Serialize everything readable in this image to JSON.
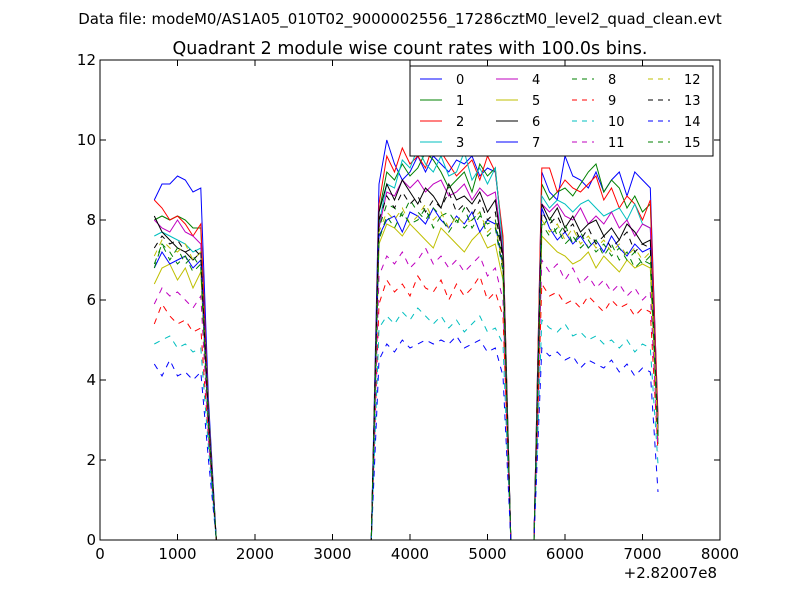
{
  "figure": {
    "suptitle": "Data file: modeM0/AS1A05_010T02_9000002556_17286cztM0_level2_quad_clean.evt"
  },
  "chart_data": {
    "type": "line",
    "title": "Quadrant 2 module wise count rates with 100.0s bins.",
    "xlabel": "",
    "ylabel": "",
    "x_offset_label": "+2.82007e8",
    "xlim": [
      0,
      8000
    ],
    "ylim": [
      0,
      12
    ],
    "xticks": [
      0,
      1000,
      2000,
      3000,
      4000,
      5000,
      6000,
      7000,
      8000
    ],
    "yticks": [
      0,
      2,
      4,
      6,
      8,
      10,
      12
    ],
    "legend_location": "upper-right",
    "legend_ncol": 4,
    "x": [
      700,
      800,
      900,
      1000,
      1100,
      1200,
      1300,
      1400,
      1500,
      1600,
      2000,
      2500,
      3000,
      3500,
      3600,
      3700,
      3800,
      3900,
      4000,
      4100,
      4200,
      4300,
      4400,
      4500,
      4600,
      4700,
      4800,
      4900,
      5000,
      5100,
      5200,
      5300,
      5400,
      5500,
      5600,
      5700,
      5800,
      5900,
      6000,
      6100,
      6200,
      6300,
      6400,
      6500,
      6600,
      6700,
      6800,
      6900,
      7000,
      7100,
      7200
    ],
    "series": [
      {
        "name": "0",
        "color": "#0000ff",
        "dash": "solid",
        "values": [
          8.5,
          8.9,
          8.9,
          9.1,
          9.0,
          8.7,
          8.8,
          3.5,
          0.0,
          0.0,
          0.0,
          0.0,
          0.0,
          0.0,
          8.9,
          10.0,
          9.4,
          9.0,
          9.2,
          9.6,
          9.2,
          9.6,
          9.4,
          9.2,
          9.5,
          9.4,
          9.6,
          9.1,
          9.3,
          9.2,
          7.5,
          0.0,
          0.0,
          0.0,
          0.0,
          9.2,
          8.7,
          8.5,
          9.6,
          9.1,
          9.0,
          8.8,
          9.2,
          8.7,
          9.0,
          9.2,
          8.6,
          9.2,
          9.0,
          8.8,
          3.0
        ]
      },
      {
        "name": "1",
        "color": "#008000",
        "dash": "solid",
        "values": [
          8.0,
          8.1,
          8.0,
          8.1,
          8.0,
          7.8,
          7.8,
          3.3,
          0.0,
          0.0,
          0.0,
          0.0,
          0.0,
          0.0,
          8.2,
          9.2,
          9.0,
          9.4,
          9.1,
          9.3,
          9.7,
          9.5,
          9.2,
          8.8,
          9.0,
          9.2,
          8.7,
          9.4,
          9.1,
          9.3,
          7.4,
          0.0,
          0.0,
          0.0,
          0.0,
          8.9,
          8.5,
          8.7,
          8.8,
          8.6,
          8.9,
          9.2,
          9.4,
          8.7,
          9.0,
          8.8,
          8.3,
          8.6,
          8.2,
          8.4,
          2.9
        ]
      },
      {
        "name": "2",
        "color": "#ff0000",
        "dash": "solid",
        "values": [
          8.5,
          8.3,
          8.0,
          8.1,
          7.9,
          7.6,
          7.9,
          3.2,
          0.0,
          0.0,
          0.0,
          0.0,
          0.0,
          0.0,
          8.4,
          9.6,
          9.2,
          9.8,
          9.4,
          9.6,
          9.3,
          9.9,
          9.7,
          9.4,
          9.1,
          9.3,
          9.5,
          9.0,
          9.6,
          9.2,
          7.6,
          0.0,
          0.0,
          0.0,
          0.0,
          9.3,
          9.3,
          8.7,
          9.0,
          8.8,
          8.7,
          8.9,
          9.1,
          8.5,
          8.8,
          8.3,
          8.6,
          8.4,
          8.0,
          8.5,
          3.1
        ]
      },
      {
        "name": "3",
        "color": "#00bfbf",
        "dash": "solid",
        "values": [
          7.6,
          7.7,
          7.6,
          7.5,
          7.4,
          7.2,
          7.3,
          3.1,
          0.0,
          0.0,
          0.0,
          0.0,
          0.0,
          0.0,
          7.9,
          8.9,
          8.8,
          9.5,
          9.3,
          9.8,
          9.4,
          9.2,
          9.6,
          9.1,
          9.2,
          9.7,
          9.0,
          9.3,
          8.9,
          9.3,
          7.3,
          0.0,
          0.0,
          0.0,
          0.0,
          8.6,
          8.3,
          8.5,
          8.4,
          8.2,
          8.4,
          8.5,
          8.3,
          8.1,
          8.2,
          8.3,
          8.0,
          8.4,
          7.9,
          7.8,
          2.8
        ]
      },
      {
        "name": "4",
        "color": "#bf00bf",
        "dash": "solid",
        "values": [
          8.0,
          7.8,
          7.7,
          8.0,
          7.7,
          7.6,
          7.4,
          3.1,
          0.0,
          0.0,
          0.0,
          0.0,
          0.0,
          0.0,
          7.8,
          8.7,
          8.6,
          9.0,
          8.8,
          9.0,
          8.7,
          8.9,
          9.0,
          8.6,
          8.7,
          8.9,
          8.5,
          8.8,
          8.6,
          8.7,
          7.2,
          0.0,
          0.0,
          0.0,
          0.0,
          8.4,
          8.2,
          8.4,
          8.1,
          8.0,
          8.3,
          7.9,
          8.1,
          7.9,
          8.2,
          7.8,
          8.0,
          7.6,
          7.9,
          7.8,
          2.8
        ]
      },
      {
        "name": "5",
        "color": "#bfbf00",
        "dash": "solid",
        "values": [
          6.4,
          6.8,
          6.9,
          6.5,
          6.8,
          6.3,
          6.7,
          2.8,
          0.0,
          0.0,
          0.0,
          0.0,
          0.0,
          0.0,
          7.4,
          7.9,
          7.8,
          7.6,
          7.9,
          7.7,
          7.5,
          7.3,
          7.8,
          7.6,
          7.4,
          7.2,
          7.5,
          7.7,
          7.3,
          7.4,
          6.5,
          0.0,
          0.0,
          0.0,
          0.0,
          7.6,
          7.4,
          7.2,
          7.1,
          6.9,
          7.0,
          7.2,
          6.8,
          7.1,
          6.9,
          6.7,
          7.0,
          6.8,
          6.9,
          6.8,
          2.5
        ]
      },
      {
        "name": "6",
        "color": "#000000",
        "dash": "solid",
        "values": [
          8.1,
          7.7,
          7.5,
          7.3,
          7.2,
          7.0,
          7.2,
          3.0,
          0.0,
          0.0,
          0.0,
          0.0,
          0.0,
          0.0,
          8.2,
          8.9,
          8.5,
          9.0,
          8.7,
          8.4,
          8.8,
          8.6,
          8.3,
          8.9,
          8.5,
          8.6,
          8.4,
          8.7,
          8.2,
          8.5,
          7.1,
          0.0,
          0.0,
          0.0,
          0.0,
          8.4,
          8.0,
          8.3,
          7.8,
          8.1,
          7.7,
          7.9,
          8.0,
          7.6,
          7.8,
          7.5,
          7.9,
          7.7,
          7.4,
          7.5,
          2.7
        ]
      },
      {
        "name": "7",
        "color": "#0000ff",
        "dash": "solid",
        "values": [
          6.8,
          7.2,
          6.9,
          7.0,
          7.1,
          6.8,
          7.0,
          2.9,
          0.0,
          0.0,
          0.0,
          0.0,
          0.0,
          0.0,
          7.6,
          8.0,
          8.1,
          7.7,
          8.2,
          8.1,
          7.9,
          8.3,
          8.0,
          7.8,
          8.1,
          7.9,
          8.2,
          7.7,
          8.0,
          7.9,
          6.8,
          0.0,
          0.0,
          0.0,
          0.0,
          8.3,
          7.8,
          7.5,
          7.7,
          7.4,
          7.6,
          7.3,
          7.5,
          7.2,
          7.6,
          7.3,
          7.1,
          7.4,
          7.2,
          7.3,
          2.6
        ]
      },
      {
        "name": "8",
        "color": "#008000",
        "dash": "dash",
        "values": [
          6.8,
          7.4,
          7.2,
          6.9,
          7.1,
          6.7,
          6.9,
          2.7,
          0.0,
          0.0,
          0.0,
          0.0,
          0.0,
          0.0,
          7.8,
          8.4,
          8.3,
          8.1,
          8.5,
          8.2,
          8.0,
          8.3,
          8.1,
          8.2,
          7.9,
          8.3,
          7.8,
          8.1,
          7.9,
          8.0,
          6.9,
          0.0,
          0.0,
          0.0,
          0.0,
          7.8,
          8.1,
          7.6,
          7.9,
          7.4,
          7.7,
          7.3,
          7.5,
          7.1,
          7.4,
          7.0,
          7.2,
          6.8,
          7.0,
          6.9,
          2.4
        ]
      },
      {
        "name": "9",
        "color": "#ff0000",
        "dash": "dash",
        "values": [
          5.4,
          5.9,
          5.6,
          5.4,
          5.5,
          5.2,
          5.3,
          2.5,
          0.0,
          0.0,
          0.0,
          0.0,
          0.0,
          0.0,
          5.9,
          6.5,
          6.2,
          6.4,
          6.1,
          6.6,
          6.3,
          6.2,
          6.5,
          6.0,
          6.4,
          6.1,
          6.3,
          6.6,
          6.0,
          6.2,
          5.6,
          0.0,
          0.0,
          0.0,
          0.0,
          6.4,
          6.1,
          6.2,
          5.9,
          6.0,
          5.8,
          6.1,
          5.9,
          5.7,
          6.0,
          5.8,
          5.9,
          5.6,
          5.8,
          5.7,
          2.2
        ]
      },
      {
        "name": "10",
        "color": "#00bfbf",
        "dash": "dash",
        "values": [
          4.9,
          5.0,
          5.1,
          4.8,
          4.9,
          4.7,
          4.8,
          2.3,
          0.0,
          0.0,
          0.0,
          0.0,
          0.0,
          0.0,
          5.3,
          5.6,
          5.4,
          5.7,
          5.5,
          5.8,
          5.6,
          5.4,
          5.6,
          5.3,
          5.5,
          5.2,
          5.4,
          5.6,
          5.2,
          5.3,
          4.9,
          0.0,
          0.0,
          0.0,
          0.0,
          5.5,
          5.3,
          5.2,
          5.4,
          5.1,
          5.2,
          5.0,
          5.1,
          4.9,
          5.0,
          4.8,
          5.0,
          4.7,
          4.9,
          4.8,
          1.9
        ]
      },
      {
        "name": "11",
        "color": "#bf00bf",
        "dash": "dash",
        "values": [
          5.9,
          6.3,
          6.1,
          6.2,
          6.0,
          5.8,
          6.1,
          2.6,
          0.0,
          0.0,
          0.0,
          0.0,
          0.0,
          0.0,
          6.6,
          7.1,
          6.9,
          7.2,
          6.8,
          7.0,
          7.3,
          6.9,
          7.1,
          6.8,
          7.0,
          6.7,
          6.9,
          7.1,
          6.6,
          6.8,
          6.0,
          0.0,
          0.0,
          0.0,
          0.0,
          7.0,
          6.7,
          6.9,
          6.5,
          6.8,
          6.4,
          6.6,
          6.3,
          6.5,
          6.2,
          6.4,
          6.1,
          6.3,
          6.0,
          6.2,
          2.3
        ]
      },
      {
        "name": "12",
        "color": "#bfbf00",
        "dash": "dash",
        "values": [
          7.1,
          7.5,
          7.3,
          7.2,
          7.4,
          7.0,
          7.2,
          2.9,
          0.0,
          0.0,
          0.0,
          0.0,
          0.0,
          0.0,
          7.7,
          8.2,
          8.0,
          8.3,
          7.9,
          8.1,
          8.4,
          8.0,
          8.2,
          7.8,
          8.1,
          7.9,
          8.0,
          8.2,
          7.7,
          7.9,
          6.8,
          0.0,
          0.0,
          0.0,
          0.0,
          8.0,
          7.7,
          7.9,
          7.5,
          7.8,
          7.4,
          7.6,
          7.3,
          7.5,
          7.2,
          7.4,
          7.1,
          7.3,
          7.0,
          7.2,
          2.6
        ]
      },
      {
        "name": "13",
        "color": "#000000",
        "dash": "dash",
        "values": [
          7.3,
          7.6,
          7.4,
          7.5,
          7.2,
          7.3,
          7.1,
          3.0,
          0.0,
          0.0,
          0.0,
          0.0,
          0.0,
          0.0,
          8.0,
          8.6,
          8.3,
          8.7,
          8.4,
          8.6,
          8.2,
          8.5,
          8.3,
          8.7,
          8.2,
          8.4,
          8.1,
          8.5,
          8.0,
          8.2,
          7.0,
          0.0,
          0.0,
          0.0,
          0.0,
          8.2,
          7.9,
          8.1,
          7.7,
          7.9,
          7.5,
          7.8,
          7.4,
          7.6,
          7.3,
          7.5,
          7.7,
          7.2,
          7.4,
          7.3,
          2.6
        ]
      },
      {
        "name": "14",
        "color": "#0000ff",
        "dash": "dash",
        "values": [
          4.4,
          4.1,
          4.5,
          4.1,
          4.2,
          4.0,
          4.2,
          2.0,
          0.0,
          0.0,
          0.0,
          0.0,
          0.0,
          0.0,
          4.5,
          4.9,
          4.7,
          5.0,
          4.8,
          4.9,
          5.0,
          4.9,
          5.0,
          4.9,
          5.1,
          4.8,
          4.9,
          5.0,
          4.7,
          4.8,
          4.1,
          0.0,
          0.0,
          0.0,
          0.0,
          4.8,
          4.6,
          4.7,
          4.5,
          4.6,
          4.3,
          4.5,
          4.4,
          4.3,
          4.5,
          4.2,
          4.4,
          4.1,
          4.3,
          4.2,
          1.2
        ]
      },
      {
        "name": "15",
        "color": "#008000",
        "dash": "dash",
        "values": [
          6.9,
          7.4,
          7.0,
          7.3,
          6.9,
          7.1,
          6.8,
          2.8,
          0.0,
          0.0,
          0.0,
          0.0,
          0.0,
          0.0,
          7.5,
          8.1,
          7.8,
          8.2,
          7.9,
          8.0,
          8.3,
          7.8,
          8.1,
          7.7,
          8.0,
          7.8,
          8.0,
          8.2,
          7.6,
          7.8,
          6.7,
          0.0,
          0.0,
          0.0,
          0.0,
          7.9,
          7.6,
          7.8,
          7.4,
          7.6,
          7.3,
          7.5,
          7.2,
          7.4,
          7.1,
          7.3,
          7.0,
          7.2,
          6.9,
          7.1,
          2.5
        ]
      }
    ]
  }
}
